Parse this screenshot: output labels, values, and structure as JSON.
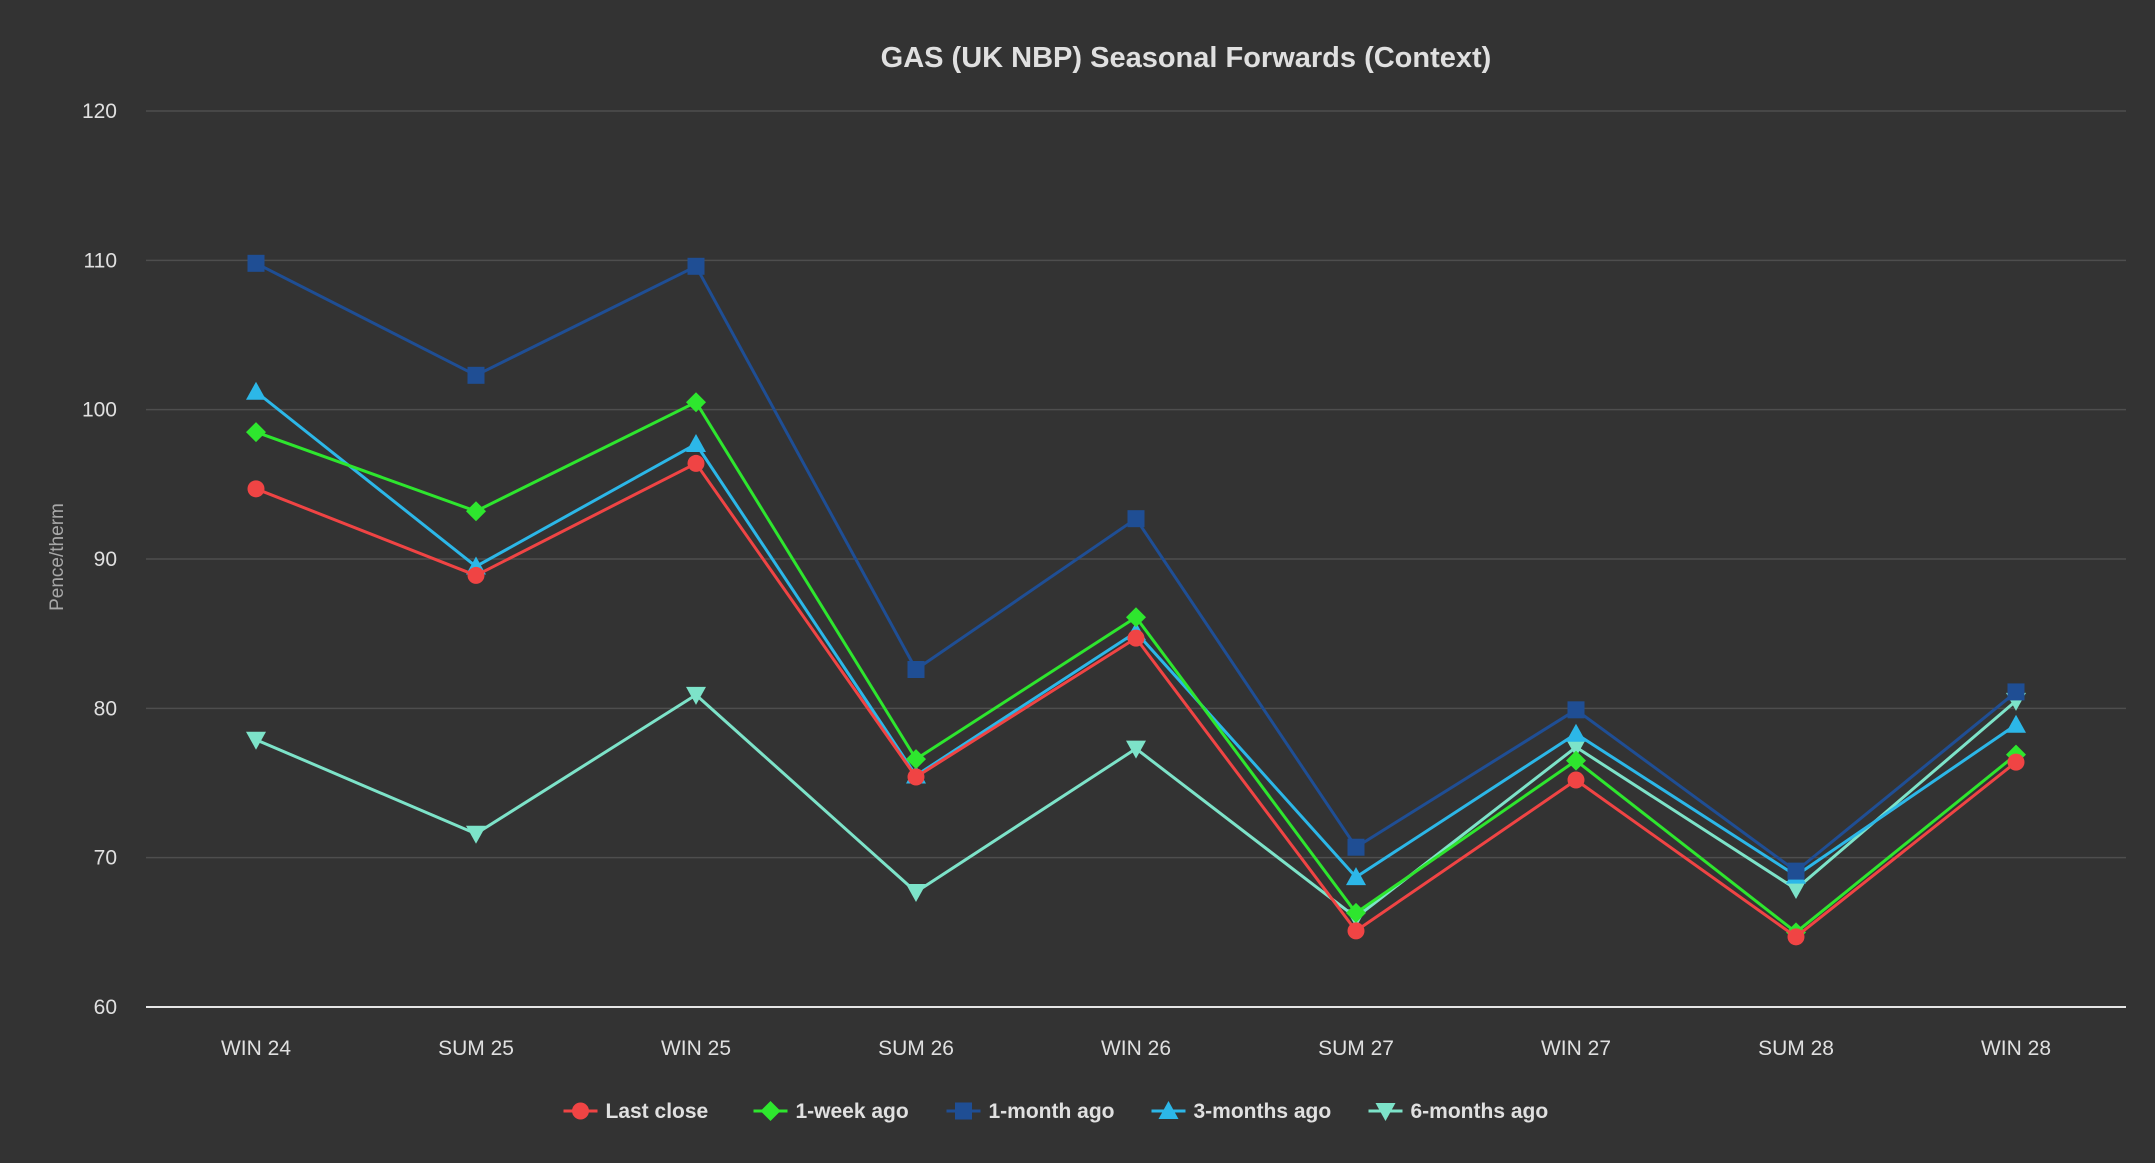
{
  "colors": {
    "background": "#333333",
    "grid": "#4e4e4e",
    "axis_line": "#e6e6e6",
    "text": "#e0e0e0",
    "axis_title": "#a8a8a8"
  },
  "chart_data": {
    "type": "line",
    "title": "GAS (UK NBP) Seasonal Forwards (Context)",
    "xlabel": "",
    "ylabel": "Pence/therm",
    "ylim": [
      60,
      120
    ],
    "yticks": [
      60,
      70,
      80,
      90,
      100,
      110,
      120
    ],
    "grid": true,
    "legend_position": "bottom-center",
    "categories": [
      "WIN 24",
      "SUM 25",
      "WIN 25",
      "SUM 26",
      "WIN 26",
      "SUM 27",
      "WIN 27",
      "SUM 28",
      "WIN 28"
    ],
    "series": [
      {
        "name": "Last close",
        "color": "#f04444",
        "marker": "circle",
        "values": [
          94.7,
          88.9,
          96.4,
          75.4,
          84.7,
          65.1,
          75.2,
          64.7,
          76.4
        ]
      },
      {
        "name": "1-week ago",
        "color": "#2ee62e",
        "marker": "diamond",
        "values": [
          98.5,
          93.2,
          100.5,
          76.6,
          86.1,
          66.3,
          76.5,
          65.0,
          76.9
        ]
      },
      {
        "name": "1-month ago",
        "color": "#1f4e94",
        "marker": "square",
        "values": [
          109.8,
          102.3,
          109.6,
          82.6,
          92.7,
          70.7,
          79.9,
          69.1,
          81.1
        ]
      },
      {
        "name": "3-months ago",
        "color": "#2cb7e8",
        "marker": "triangle",
        "values": [
          101.2,
          89.5,
          97.7,
          75.5,
          85.1,
          68.7,
          78.3,
          68.8,
          78.9
        ]
      },
      {
        "name": "6-months ago",
        "color": "#7de3c9",
        "marker": "triangle-down",
        "values": [
          77.9,
          71.6,
          80.9,
          67.7,
          77.3,
          66.0,
          77.4,
          67.9,
          80.5
        ]
      }
    ]
  }
}
